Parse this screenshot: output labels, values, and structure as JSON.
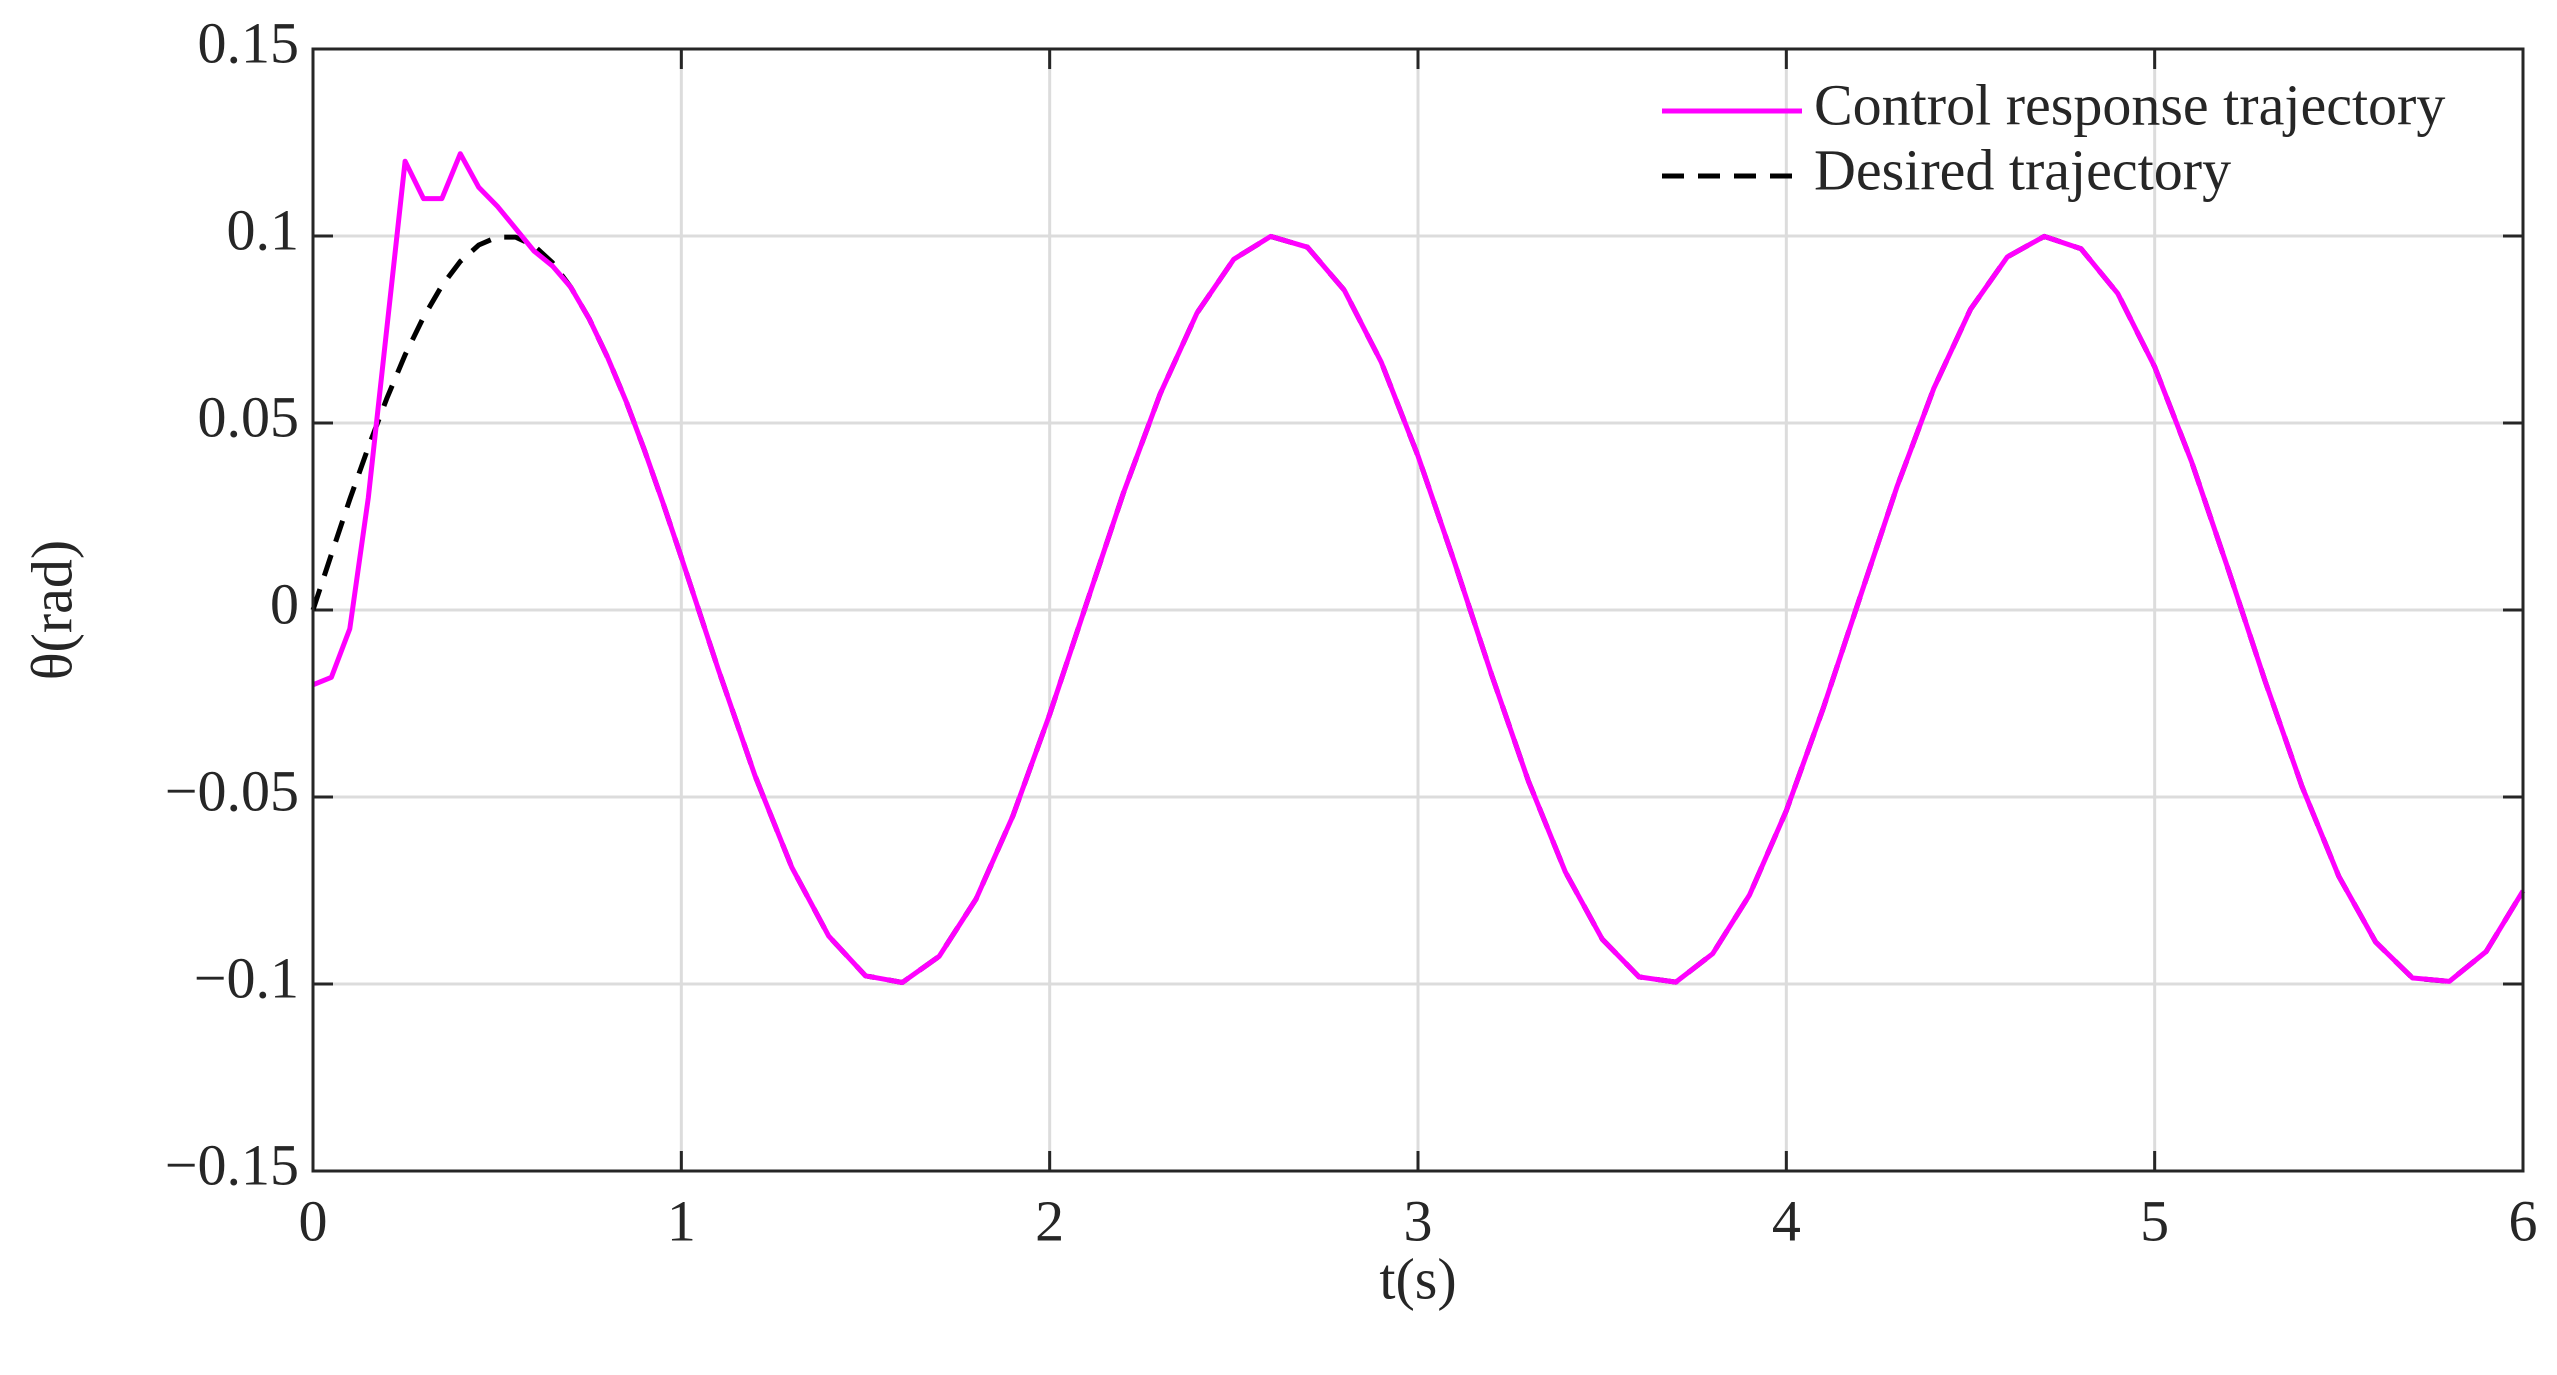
{
  "chart_data": {
    "type": "line",
    "xlabel": "t(s)",
    "ylabel": "θ(rad)",
    "x": [
      0,
      0.05,
      0.1,
      0.15,
      0.2,
      0.25,
      0.3,
      0.35,
      0.4,
      0.45,
      0.5,
      0.55,
      0.6,
      0.65,
      0.7,
      0.75,
      0.8,
      0.85,
      0.9,
      0.95,
      1.0,
      1.1,
      1.2,
      1.3,
      1.4,
      1.5,
      1.6,
      1.7,
      1.8,
      1.9,
      2.0,
      2.1,
      2.2,
      2.3,
      2.4,
      2.5,
      2.6,
      2.7,
      2.8,
      2.9,
      3.0,
      3.1,
      3.2,
      3.3,
      3.4,
      3.5,
      3.6,
      3.7,
      3.8,
      3.9,
      4.0,
      4.1,
      4.2,
      4.3,
      4.4,
      4.5,
      4.6,
      4.7,
      4.8,
      4.9,
      5.0,
      5.1,
      5.2,
      5.3,
      5.4,
      5.5,
      5.6,
      5.7,
      5.8,
      5.9,
      6.0
    ],
    "series": [
      {
        "name": "Control response trajectory",
        "color": "#ff00ff",
        "line_style": "solid",
        "values": [
          -0.02,
          -0.018,
          -0.005,
          0.03,
          0.075,
          0.12,
          0.11,
          0.11,
          0.122,
          0.113,
          0.108,
          0.102,
          0.096,
          0.092,
          0.0863,
          0.0778,
          0.0675,
          0.0558,
          0.0427,
          0.0287,
          0.0141,
          -0.0158,
          -0.0443,
          -0.0688,
          -0.0872,
          -0.0978,
          -0.0996,
          -0.0926,
          -0.0773,
          -0.0551,
          -0.0279,
          0.0017,
          0.0312,
          0.0578,
          0.0794,
          0.0938,
          0.0999,
          0.097,
          0.0855,
          0.0663,
          0.0412,
          0.0125,
          -0.0174,
          -0.0458,
          -0.07,
          -0.088,
          -0.0981,
          -0.0995,
          -0.0919,
          -0.0762,
          -0.0537,
          -0.0263,
          0.0034,
          0.0328,
          0.0592,
          0.0804,
          0.0944,
          0.0999,
          0.0966,
          0.0846,
          0.065,
          0.0397,
          0.0108,
          -0.0191,
          -0.0472,
          -0.0712,
          -0.0888,
          -0.0984,
          -0.0993,
          -0.0913,
          -0.0751
        ]
      },
      {
        "name": "Desired trajectory",
        "color": "#000000",
        "line_style": "dashed",
        "values": [
          0,
          0.0149,
          0.0296,
          0.0435,
          0.0565,
          0.0682,
          0.0783,
          0.0867,
          0.0932,
          0.0976,
          0.0997,
          0.0997,
          0.0974,
          0.0929,
          0.0863,
          0.0778,
          0.0675,
          0.0558,
          0.0427,
          0.0287,
          0.0141,
          -0.0158,
          -0.0443,
          -0.0688,
          -0.0872,
          -0.0978,
          -0.0996,
          -0.0926,
          -0.0773,
          -0.0551,
          -0.0279,
          0.0017,
          0.0312,
          0.0578,
          0.0794,
          0.0938,
          0.0999,
          0.097,
          0.0855,
          0.0663,
          0.0412,
          0.0125,
          -0.0174,
          -0.0458,
          -0.07,
          -0.088,
          -0.0981,
          -0.0995,
          -0.0919,
          -0.0762,
          -0.0537,
          -0.0263,
          0.0034,
          0.0328,
          0.0592,
          0.0804,
          0.0944,
          0.0999,
          0.0966,
          0.0846,
          0.065,
          0.0397,
          0.0108,
          -0.0191,
          -0.0472,
          -0.0712,
          -0.0888,
          -0.0984,
          -0.0993,
          -0.0913,
          -0.0751
        ]
      }
    ],
    "xlim": [
      0,
      6
    ],
    "xticks": [
      0,
      1,
      2,
      3,
      4,
      5,
      6
    ],
    "ylim": [
      -0.15,
      0.15
    ],
    "yticks": [
      {
        "value": -0.15,
        "label": "−0.15"
      },
      {
        "value": -0.1,
        "label": "−0.1"
      },
      {
        "value": -0.05,
        "label": "−0.05"
      },
      0,
      0.05,
      0.1,
      0.15
    ],
    "grid": true,
    "legend": "upper-right"
  }
}
